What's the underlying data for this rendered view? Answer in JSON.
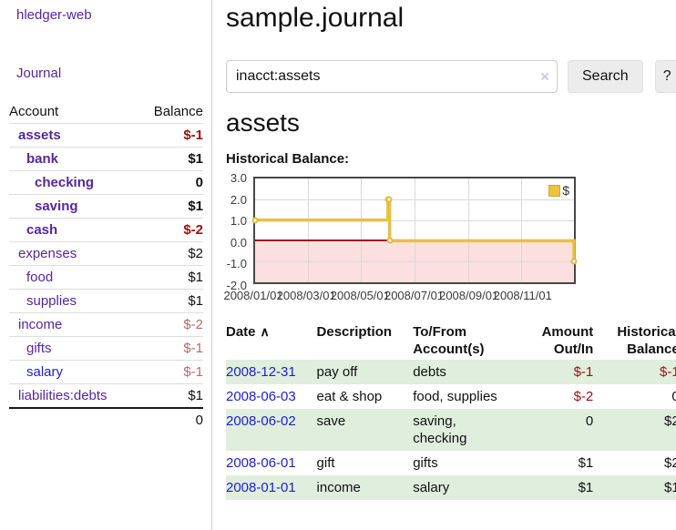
{
  "app": {
    "brand": "hledger-web"
  },
  "sidebar": {
    "journal_link": "Journal",
    "table": {
      "account_header": "Account",
      "balance_header": "Balance",
      "rows": [
        {
          "name": "assets",
          "balance": "$-1",
          "level": 1,
          "bold": true
        },
        {
          "name": "bank",
          "balance": "$1",
          "level": 2,
          "bold": true
        },
        {
          "name": "checking",
          "balance": "0",
          "level": 3,
          "bold": true
        },
        {
          "name": "saving",
          "balance": "$1",
          "level": 3,
          "bold": true
        },
        {
          "name": "cash",
          "balance": "$-2",
          "level": 2,
          "bold": true
        },
        {
          "name": "expenses",
          "balance": "$2",
          "level": 1,
          "bold": false
        },
        {
          "name": "food",
          "balance": "$1",
          "level": 2,
          "bold": false
        },
        {
          "name": "supplies",
          "balance": "$1",
          "level": 2,
          "bold": false
        },
        {
          "name": "income",
          "balance": "$-2",
          "level": 1,
          "bold": false
        },
        {
          "name": "gifts",
          "balance": "$-1",
          "level": 2,
          "bold": false
        },
        {
          "name": "salary",
          "balance": "$-1",
          "level": 2,
          "bold": false,
          "unvisited": true
        },
        {
          "name": "liabilities:debts",
          "balance": "$1",
          "level": 1,
          "bold": false
        }
      ],
      "total": "0"
    }
  },
  "main": {
    "title": "sample.journal",
    "search": {
      "value": "inacct:assets",
      "clear_icon": "×",
      "search_button": "Search",
      "help_button": "?"
    },
    "account_heading": "assets",
    "chart_label": "Historical Balance:"
  },
  "chart_data": {
    "type": "line",
    "step": true,
    "title": "Historical Balance",
    "series": [
      {
        "name": "$",
        "color": "#edc240",
        "points": [
          [
            "2008-01-01",
            1
          ],
          [
            "2008-06-01",
            2
          ],
          [
            "2008-06-02",
            2
          ],
          [
            "2008-06-03",
            0
          ],
          [
            "2008-12-31",
            -1
          ]
        ]
      }
    ],
    "x_range": [
      "2008-01-01",
      "2008-12-31"
    ],
    "x_ticks": [
      "2008/01/01",
      "2008/03/01",
      "2008/05/01",
      "2008/07/01",
      "2008/09/01",
      "2008/11/01"
    ],
    "y_ticks": [
      3.0,
      2.0,
      1.0,
      0.0,
      -1.0,
      -2.0
    ],
    "ylim": [
      -2,
      3
    ],
    "grid": true,
    "legend_position": "top-right",
    "negative_region_color": "#fcdfdf",
    "zero_line_color": "#a31515"
  },
  "register_table": {
    "sort_icon": "∧",
    "headers": [
      "Date",
      "Description",
      "To/From\nAccount(s)",
      "Amount\nOut/In",
      "Historical\nBalance"
    ],
    "rows": [
      {
        "date": "2008-12-31",
        "description": "pay off",
        "accounts": "debts",
        "amount": "$-1",
        "balance": "$-1"
      },
      {
        "date": "2008-06-03",
        "description": "eat & shop",
        "accounts": "food, supplies",
        "amount": "$-2",
        "balance": "0"
      },
      {
        "date": "2008-06-02",
        "description": "save",
        "accounts": "saving,\nchecking",
        "amount": "0",
        "balance": "$2"
      },
      {
        "date": "2008-06-01",
        "description": "gift",
        "accounts": "gifts",
        "amount": "$1",
        "balance": "$2"
      },
      {
        "date": "2008-01-01",
        "description": "income",
        "accounts": "salary",
        "amount": "$1",
        "balance": "$1"
      }
    ]
  }
}
